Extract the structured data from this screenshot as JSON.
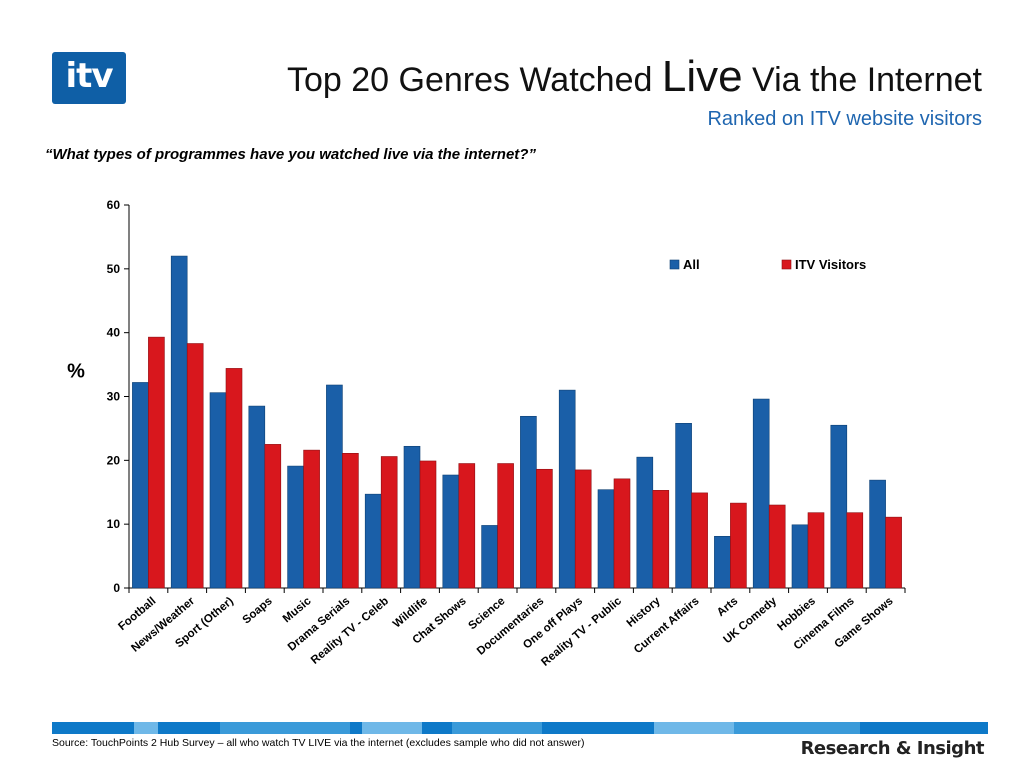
{
  "logo": {
    "text": "itv"
  },
  "header": {
    "title_part1": "Top 20 Genres Watched ",
    "title_emph": "Live",
    "title_part2": " Via the Internet",
    "subtitle": "Ranked on ITV website visitors"
  },
  "question": "“What types of programmes have you watched live via the internet?”",
  "colors": {
    "all": "#1a5fa8",
    "itv": "#d8171d",
    "brand_blue": "#0f5fa6",
    "subtitle_blue": "#1f66b0"
  },
  "chart_data": {
    "type": "bar",
    "categories": [
      "Football",
      "News/Weather",
      "Sport (Other)",
      "Soaps",
      "Music",
      "Drama Serials",
      "Reality TV - Celeb",
      "Wildlife",
      "Chat Shows",
      "Science",
      "Documentaries",
      "One off Plays",
      "Reality TV - Public",
      "History",
      "Current Affairs",
      "Arts",
      "UK Comedy",
      "Hobbies",
      "Cinema Films",
      "Game Shows"
    ],
    "series": [
      {
        "name": "All",
        "values": [
          32.2,
          52,
          30.6,
          28.5,
          19.1,
          31.8,
          14.7,
          22.2,
          17.7,
          9.8,
          26.9,
          31,
          15.4,
          20.5,
          25.8,
          8.1,
          29.6,
          9.9,
          25.5,
          16.9
        ]
      },
      {
        "name": "ITV Visitors",
        "values": [
          39.3,
          38.3,
          34.4,
          22.5,
          21.6,
          21.1,
          20.6,
          19.9,
          19.5,
          19.5,
          18.6,
          18.5,
          17.1,
          15.3,
          14.9,
          13.3,
          13,
          11.8,
          11.8,
          11.1
        ]
      }
    ],
    "ylabel": "%",
    "ylim": [
      0,
      60
    ],
    "yticks": [
      "0",
      "10",
      "20",
      "30",
      "40",
      "50",
      "60"
    ],
    "legend_position": "top-right",
    "grid": false
  },
  "footer": {
    "source": "Source: TouchPoints 2 Hub Survey  – all who watch TV LIVE via the internet (excludes sample who did not answer)",
    "brand": "Research & Insight"
  }
}
